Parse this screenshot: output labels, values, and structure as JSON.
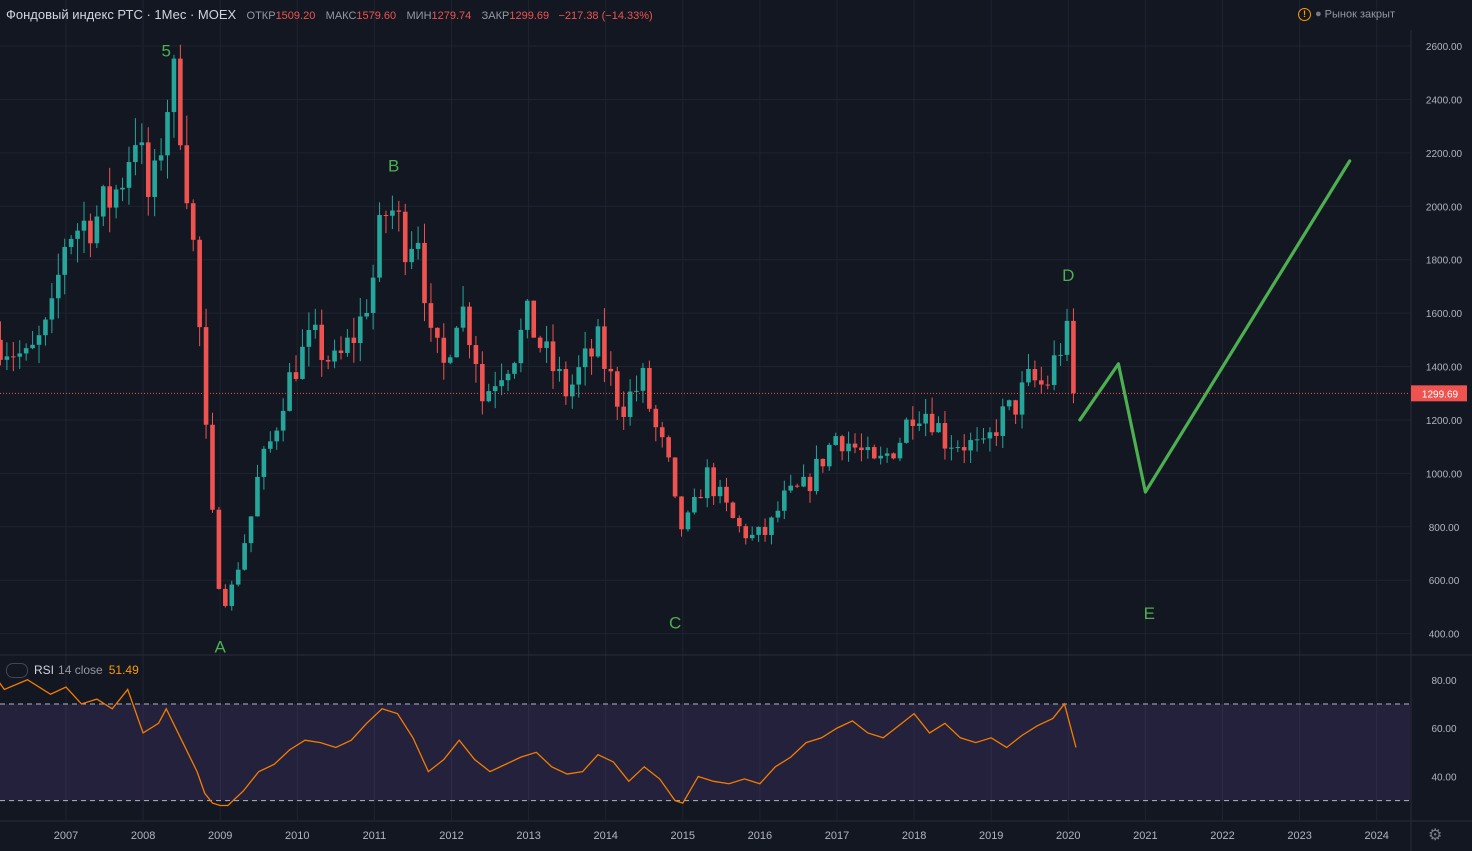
{
  "header": {
    "symbol": "Фондовый индекс РТС · 1Мес · MOEX",
    "open_label": "ОТКР",
    "open_value": "1509.20",
    "high_label": "МАКС",
    "high_value": "1579.60",
    "low_label": "МИН",
    "low_value": "1279.74",
    "close_label": "ЗАКР",
    "close_value": "1299.69",
    "change": "−217.38 (−14.33%)",
    "market_status": "Рынок закрыт",
    "icon": "warning-icon"
  },
  "rsi": {
    "name": "RSI",
    "params": "14 close",
    "value": "51.49"
  },
  "colors": {
    "background": "#131722",
    "up": "#26a69a",
    "down": "#ef5350",
    "rsi_line": "#f57c00",
    "projection": "#4caf50",
    "wave_label": "#4caf50"
  },
  "chart_data": [
    {
      "type": "candlestick",
      "title": "Фондовый индекс РТС · 1Мес · MOEX",
      "y_ticks": [
        "2600.00",
        "2400.00",
        "2200.00",
        "2000.00",
        "1800.00",
        "1600.00",
        "1400.00",
        "1200.00",
        "1000.00",
        "800.00",
        "600.00",
        "400.00"
      ],
      "ylim": [
        320,
        2660
      ],
      "x_ticks": [
        "2007",
        "2008",
        "2009",
        "2010",
        "2011",
        "2012",
        "2013",
        "2014",
        "2015",
        "2016",
        "2017",
        "2018",
        "2019",
        "2020",
        "2021",
        "2022",
        "2023",
        "2024"
      ],
      "last_price": "1299.69",
      "close_path": [
        {
          "t": 2006.15,
          "v": 1500
        },
        {
          "t": 2006.5,
          "v": 1420
        },
        {
          "t": 2006.8,
          "v": 1560
        },
        {
          "t": 2007.0,
          "v": 1900
        },
        {
          "t": 2007.4,
          "v": 1960
        },
        {
          "t": 2007.7,
          "v": 2080
        },
        {
          "t": 2007.9,
          "v": 2290
        },
        {
          "t": 2008.1,
          "v": 1980
        },
        {
          "t": 2008.3,
          "v": 2380
        },
        {
          "t": 2008.4,
          "v": 2460
        },
        {
          "t": 2008.5,
          "v": 2300
        },
        {
          "t": 2008.6,
          "v": 2000
        },
        {
          "t": 2008.7,
          "v": 1700
        },
        {
          "t": 2008.8,
          "v": 1200
        },
        {
          "t": 2008.9,
          "v": 830
        },
        {
          "t": 2009.0,
          "v": 550
        },
        {
          "t": 2009.1,
          "v": 520
        },
        {
          "t": 2009.2,
          "v": 620
        },
        {
          "t": 2009.4,
          "v": 840
        },
        {
          "t": 2009.5,
          "v": 1000
        },
        {
          "t": 2009.7,
          "v": 1150
        },
        {
          "t": 2009.8,
          "v": 1280
        },
        {
          "t": 2010.0,
          "v": 1420
        },
        {
          "t": 2010.2,
          "v": 1500
        },
        {
          "t": 2010.5,
          "v": 1400
        },
        {
          "t": 2010.8,
          "v": 1550
        },
        {
          "t": 2011.0,
          "v": 1750
        },
        {
          "t": 2011.1,
          "v": 1950
        },
        {
          "t": 2011.2,
          "v": 2000
        },
        {
          "t": 2011.4,
          "v": 1880
        },
        {
          "t": 2011.6,
          "v": 1920
        },
        {
          "t": 2011.7,
          "v": 1500
        },
        {
          "t": 2011.9,
          "v": 1400
        },
        {
          "t": 2012.1,
          "v": 1650
        },
        {
          "t": 2012.3,
          "v": 1480
        },
        {
          "t": 2012.4,
          "v": 1280
        },
        {
          "t": 2012.6,
          "v": 1380
        },
        {
          "t": 2012.8,
          "v": 1450
        },
        {
          "t": 2013.0,
          "v": 1580
        },
        {
          "t": 2013.2,
          "v": 1450
        },
        {
          "t": 2013.5,
          "v": 1300
        },
        {
          "t": 2013.7,
          "v": 1400
        },
        {
          "t": 2013.9,
          "v": 1480
        },
        {
          "t": 2014.0,
          "v": 1400
        },
        {
          "t": 2014.2,
          "v": 1250
        },
        {
          "t": 2014.5,
          "v": 1350
        },
        {
          "t": 2014.6,
          "v": 1200
        },
        {
          "t": 2014.8,
          "v": 1050
        },
        {
          "t": 2014.95,
          "v": 790
        },
        {
          "t": 2015.1,
          "v": 830
        },
        {
          "t": 2015.3,
          "v": 1000
        },
        {
          "t": 2015.5,
          "v": 900
        },
        {
          "t": 2015.7,
          "v": 800
        },
        {
          "t": 2015.9,
          "v": 760
        },
        {
          "t": 2016.1,
          "v": 780
        },
        {
          "t": 2016.3,
          "v": 900
        },
        {
          "t": 2016.6,
          "v": 950
        },
        {
          "t": 2016.8,
          "v": 1050
        },
        {
          "t": 2017.0,
          "v": 1150
        },
        {
          "t": 2017.3,
          "v": 1080
        },
        {
          "t": 2017.5,
          "v": 1020
        },
        {
          "t": 2017.8,
          "v": 1120
        },
        {
          "t": 2018.0,
          "v": 1250
        },
        {
          "t": 2018.2,
          "v": 1230
        },
        {
          "t": 2018.4,
          "v": 1130
        },
        {
          "t": 2018.7,
          "v": 1110
        },
        {
          "t": 2018.9,
          "v": 1080
        },
        {
          "t": 2019.1,
          "v": 1200
        },
        {
          "t": 2019.3,
          "v": 1250
        },
        {
          "t": 2019.5,
          "v": 1350
        },
        {
          "t": 2019.7,
          "v": 1320
        },
        {
          "t": 2019.9,
          "v": 1480
        },
        {
          "t": 2020.0,
          "v": 1510
        },
        {
          "t": 2020.1,
          "v": 1300
        }
      ],
      "annotations": [
        {
          "text": "5",
          "t": 2008.3,
          "v": 2560
        },
        {
          "text": "B",
          "t": 2011.25,
          "v": 2130
        },
        {
          "text": "D",
          "t": 2020.0,
          "v": 1720
        },
        {
          "text": "A",
          "t": 2009.0,
          "v": 330
        },
        {
          "text": "C",
          "t": 2014.9,
          "v": 420
        },
        {
          "text": "E",
          "t": 2021.05,
          "v": 455
        }
      ],
      "projection": [
        {
          "t": 2020.15,
          "v": 1200
        },
        {
          "t": 2020.65,
          "v": 1410
        },
        {
          "t": 2021.0,
          "v": 930
        },
        {
          "t": 2023.65,
          "v": 2170
        }
      ]
    },
    {
      "type": "line",
      "title": "RSI",
      "y_ticks": [
        "80.00",
        "60.00",
        "40.00"
      ],
      "ylim": [
        22,
        89
      ],
      "bands": [
        30,
        70
      ],
      "x": [
        2006.0,
        2006.2,
        2006.5,
        2006.8,
        2007.0,
        2007.2,
        2007.4,
        2007.6,
        2007.8,
        2008.0,
        2008.2,
        2008.3,
        2008.5,
        2008.7,
        2008.8,
        2008.9,
        2009.0,
        2009.1,
        2009.3,
        2009.5,
        2009.7,
        2009.9,
        2010.1,
        2010.3,
        2010.5,
        2010.7,
        2010.9,
        2011.1,
        2011.3,
        2011.5,
        2011.7,
        2011.9,
        2012.1,
        2012.3,
        2012.5,
        2012.7,
        2012.9,
        2013.1,
        2013.3,
        2013.5,
        2013.7,
        2013.9,
        2014.1,
        2014.3,
        2014.5,
        2014.7,
        2014.9,
        2015.0,
        2015.2,
        2015.4,
        2015.6,
        2015.8,
        2016.0,
        2016.2,
        2016.4,
        2016.6,
        2016.8,
        2017.0,
        2017.2,
        2017.4,
        2017.6,
        2017.8,
        2018.0,
        2018.2,
        2018.4,
        2018.6,
        2018.8,
        2019.0,
        2019.2,
        2019.4,
        2019.6,
        2019.8,
        2019.95,
        2020.1
      ],
      "values": [
        85,
        76,
        80,
        74,
        77,
        70,
        72,
        68,
        76,
        58,
        62,
        68,
        55,
        42,
        33,
        29,
        28,
        28,
        34,
        42,
        45,
        51,
        55,
        54,
        52,
        55,
        62,
        68,
        66,
        56,
        42,
        47,
        55,
        47,
        42,
        45,
        48,
        50,
        44,
        41,
        42,
        49,
        46,
        38,
        44,
        39,
        30,
        29,
        40,
        38,
        37,
        39,
        37,
        44,
        48,
        54,
        56,
        60,
        63,
        58,
        56,
        61,
        66,
        58,
        62,
        56,
        54,
        56,
        52,
        57,
        61,
        64,
        70,
        52
      ]
    }
  ]
}
